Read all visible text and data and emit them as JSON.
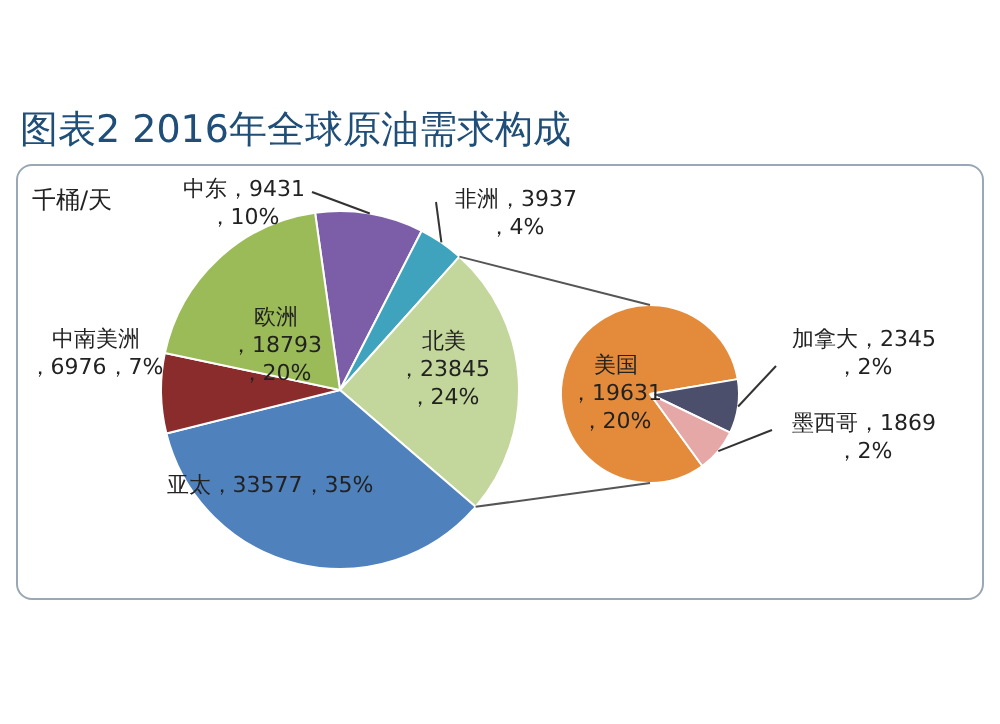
{
  "chart_data": [
    {
      "type": "pie",
      "title": "图表2 2016年全球原油需求构成",
      "annotations": [
        "千桶/天"
      ],
      "categories": [
        "中东",
        "非洲",
        "北美",
        "亚太",
        "中南美洲",
        "欧洲"
      ],
      "values": [
        9431,
        3937,
        23845,
        33577,
        6976,
        18793
      ],
      "colors": [
        "#7b5ea7",
        "#3fa3bd",
        "#c3d69b",
        "#4f81bd",
        "#8b2c2c",
        "#9bbb59"
      ],
      "value_labels": [
        "，9431，10%",
        "，3937，4%",
        "，23845，24%",
        "，33577，35%",
        "，6976，7%",
        "，18793，20%"
      ]
    },
    {
      "type": "pie",
      "categories": [
        "美国",
        "加拿大",
        "墨西哥"
      ],
      "values": [
        19631,
        2345,
        1869
      ],
      "colors": [
        "#e38b3b",
        "#4b4f6b",
        "#e6a7a7"
      ],
      "value_labels": [
        "，19631，20%",
        "，2345，2%",
        "，1869，2%"
      ]
    }
  ]
}
